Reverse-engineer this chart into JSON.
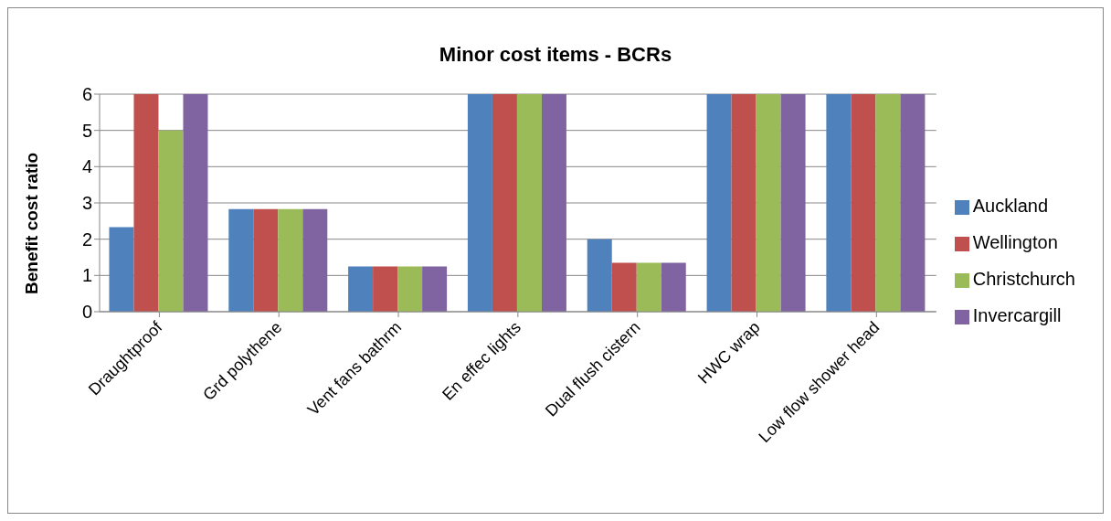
{
  "chart_data": {
    "type": "bar",
    "title": "Minor cost items - BCRs",
    "ylabel": "Benefit cost  ratio",
    "categories": [
      "Draughtproof",
      "Grd polythene",
      "Vent fans bathrm",
      "En effec lights",
      "Dual flush cistern",
      "HWC wrap",
      "Low flow shower head"
    ],
    "series": [
      {
        "name": "Auckland",
        "color": "#4f81bd",
        "values": [
          2.33,
          2.83,
          1.25,
          6,
          2,
          6,
          6
        ]
      },
      {
        "name": "Wellington",
        "color": "#c0504d",
        "values": [
          6,
          2.83,
          1.25,
          6,
          1.35,
          6,
          6
        ]
      },
      {
        "name": "Christchurch",
        "color": "#9bbb59",
        "values": [
          5,
          2.83,
          1.25,
          6,
          1.35,
          6,
          6
        ]
      },
      {
        "name": "Invercargill",
        "color": "#8064a2",
        "values": [
          6,
          2.83,
          1.25,
          6,
          1.35,
          6,
          6
        ]
      }
    ],
    "ylim": [
      0,
      6
    ],
    "yticks": [
      0,
      1,
      2,
      3,
      4,
      5,
      6
    ],
    "grid": "y",
    "legend": "right"
  }
}
